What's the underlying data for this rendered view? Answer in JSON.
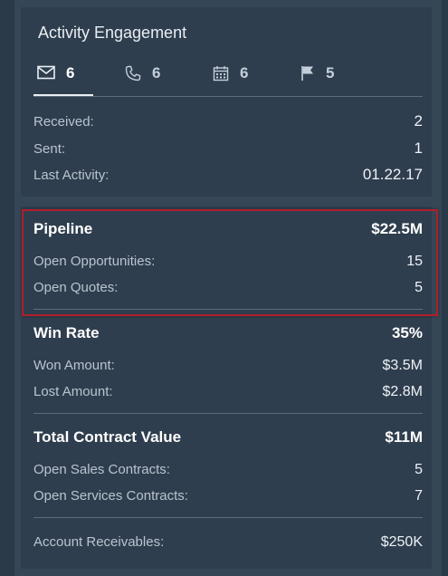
{
  "activity": {
    "title": "Activity Engagement",
    "tabs": [
      {
        "icon": "mail-icon",
        "count": "6"
      },
      {
        "icon": "phone-icon",
        "count": "6"
      },
      {
        "icon": "calendar-icon",
        "count": "6"
      },
      {
        "icon": "flag-icon",
        "count": "5"
      }
    ],
    "rows": [
      {
        "label": "Received:",
        "value": "2"
      },
      {
        "label": "Sent:",
        "value": "1"
      },
      {
        "label": "Last Activity:",
        "value": "01.22.17"
      }
    ]
  },
  "pipeline": {
    "title": "Pipeline",
    "value": "$22.5M",
    "rows": [
      {
        "label": "Open Opportunities:",
        "value": "15"
      },
      {
        "label": "Open Quotes:",
        "value": "5"
      }
    ]
  },
  "win_rate": {
    "title": "Win Rate",
    "value": "35%",
    "rows": [
      {
        "label": "Won Amount:",
        "value": "$3.5M"
      },
      {
        "label": "Lost Amount:",
        "value": "$2.8M"
      }
    ]
  },
  "contract": {
    "title": "Total Contract Value",
    "value": "$11M",
    "rows": [
      {
        "label": "Open Sales Contracts:",
        "value": "5"
      },
      {
        "label": "Open Services Contracts:",
        "value": "7"
      }
    ]
  },
  "receivables": {
    "label": "Account Receivables:",
    "value": "$250K"
  },
  "colors": {
    "highlight_border": "#b01e2a",
    "card_background": "#2f3e4e"
  }
}
